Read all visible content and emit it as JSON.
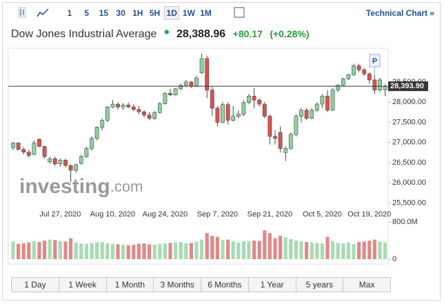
{
  "toolbar": {
    "intervals": [
      "1",
      "5",
      "15",
      "30",
      "1H",
      "5H",
      "1D",
      "1W",
      "1M"
    ],
    "selected": 6,
    "link": "Technical Chart »"
  },
  "header": {
    "name": "Dow Jones Industrial Average",
    "price": "28,388.96",
    "change": "+80.17",
    "change_pct": "(+0.28%)"
  },
  "chart_data": {
    "type": "candlestick",
    "categories": [
      null,
      null,
      null,
      null,
      null,
      null,
      null,
      null,
      null,
      "Jul 27, 2020",
      null,
      null,
      null,
      null,
      null,
      null,
      null,
      null,
      null,
      "Aug 10, 2020",
      null,
      null,
      null,
      null,
      null,
      null,
      null,
      null,
      null,
      "Aug 24, 2020",
      null,
      null,
      null,
      null,
      null,
      null,
      null,
      null,
      null,
      "Sep 7, 2020",
      null,
      null,
      null,
      null,
      null,
      null,
      null,
      null,
      null,
      "Sep 21, 2020",
      null,
      null,
      null,
      null,
      null,
      null,
      null,
      null,
      null,
      "Oct 5, 2020",
      null,
      null,
      null,
      null,
      null,
      null,
      null,
      null,
      "Oct 19, 2020",
      null,
      null,
      null
    ],
    "open": [
      26870,
      26990,
      26830,
      26760,
      26700,
      27080,
      26900,
      26520,
      26600,
      26470,
      26560,
      26430,
      26310,
      26480,
      26650,
      26850,
      27100,
      27380,
      27550,
      27880,
      27950,
      27880,
      27930,
      27880,
      27820,
      27760,
      27680,
      27600,
      27740,
      27960,
      28220,
      28180,
      28330,
      28420,
      28500,
      28400,
      28730,
      29080,
      28300,
      27850,
      27500,
      27940,
      27550,
      27650,
      27700,
      27990,
      28150,
      28050,
      27950,
      27650,
      27150,
      27250,
      26750,
      26850,
      27200,
      27650,
      27800,
      27600,
      27800,
      27950,
      28150,
      27800,
      28300,
      28420,
      28580,
      28680,
      28900,
      28800,
      28700,
      28550,
      28300,
      28308
    ],
    "high": [
      27010,
      27000,
      26880,
      26820,
      27050,
      27100,
      26920,
      26640,
      26650,
      26600,
      26600,
      26450,
      26480,
      26700,
      26900,
      27150,
      27400,
      27600,
      27900,
      28050,
      28000,
      27980,
      27990,
      27950,
      27900,
      27800,
      27750,
      27780,
      28000,
      28250,
      28330,
      28350,
      28450,
      28550,
      28520,
      28650,
      29200,
      29150,
      28400,
      27900,
      28000,
      28000,
      27900,
      27800,
      28050,
      28200,
      28350,
      28100,
      28000,
      27700,
      27300,
      27400,
      26900,
      27250,
      27700,
      27850,
      27850,
      27850,
      28000,
      28200,
      28300,
      28350,
      28450,
      28600,
      28700,
      28950,
      28950,
      28850,
      28750,
      28700,
      28600,
      28450
    ],
    "low": [
      26810,
      26800,
      26700,
      26620,
      26690,
      26880,
      26600,
      26470,
      26420,
      26400,
      26380,
      26010,
      26250,
      26450,
      26620,
      26800,
      27050,
      27300,
      27500,
      27850,
      27820,
      27800,
      27850,
      27780,
      27700,
      27620,
      27550,
      27560,
      27720,
      27940,
      28150,
      28160,
      28300,
      28380,
      28350,
      28380,
      28700,
      28100,
      27650,
      27400,
      27480,
      27450,
      27520,
      27600,
      27650,
      27950,
      27850,
      27900,
      27600,
      26950,
      26950,
      26750,
      26540,
      26820,
      27150,
      27500,
      27550,
      27580,
      27750,
      27850,
      27750,
      27780,
      28250,
      28400,
      28550,
      28650,
      28750,
      28650,
      28450,
      28200,
      28250,
      28150
    ],
    "close": [
      26990,
      26830,
      26760,
      26680,
      26990,
      26900,
      26650,
      26600,
      26470,
      26560,
      26430,
      26310,
      26450,
      26650,
      26850,
      27100,
      27380,
      27550,
      27880,
      27950,
      27880,
      27930,
      27880,
      27820,
      27760,
      27680,
      27600,
      27740,
      27960,
      28220,
      28180,
      28330,
      28420,
      28500,
      28400,
      28600,
      29080,
      28300,
      27850,
      27500,
      27940,
      27550,
      27650,
      27700,
      27990,
      28150,
      28050,
      27950,
      27650,
      27150,
      27100,
      26850,
      26850,
      27200,
      27650,
      27800,
      27600,
      27800,
      27950,
      28150,
      27800,
      28300,
      28420,
      28580,
      28680,
      28900,
      28800,
      28700,
      28550,
      28300,
      28550,
      28389
    ],
    "volume": [
      380,
      330,
      340,
      360,
      390,
      370,
      400,
      420,
      410,
      390,
      380,
      450,
      360,
      340,
      330,
      350,
      360,
      370,
      340,
      330,
      320,
      310,
      300,
      310,
      330,
      340,
      320,
      310,
      330,
      340,
      350,
      360,
      370,
      340,
      350,
      380,
      420,
      560,
      500,
      480,
      410,
      420,
      380,
      360,
      390,
      380,
      400,
      390,
      620,
      560,
      450,
      500,
      470,
      430,
      400,
      380,
      370,
      360,
      350,
      340,
      480,
      390,
      350,
      340,
      360,
      330,
      370,
      380,
      400,
      420,
      380,
      360
    ],
    "up_color": "#8fd19e",
    "down_color": "#d9534f",
    "up_volume_color": "#a9dbb4",
    "down_volume_color": "#df8a88",
    "ylim": [
      25320,
      29250
    ],
    "yticks": [
      {
        "value": 25500,
        "label": "25,500.00"
      },
      {
        "value": 26000,
        "label": "26,000.00"
      },
      {
        "value": 26500,
        "label": "26,500.00"
      },
      {
        "value": 27000,
        "label": "27,000.00"
      },
      {
        "value": 27500,
        "label": "27,500.00"
      },
      {
        "value": 28000,
        "label": "28,000.00"
      },
      {
        "value": 28500,
        "label": "28,500.00"
      }
    ],
    "y2lim": [
      0,
      800
    ],
    "y2ticks": [
      {
        "value": 800,
        "label": "800.0M"
      },
      0
    ],
    "price_line": {
      "value": 28393.9,
      "label": "28,393.90"
    },
    "marker": "P",
    "watermark": [
      "investing",
      ".com"
    ]
  },
  "ranges": [
    "1 Day",
    "1 Week",
    "1 Month",
    "3 Months",
    "6 Months",
    "1 Year",
    "5 years",
    "Max"
  ]
}
